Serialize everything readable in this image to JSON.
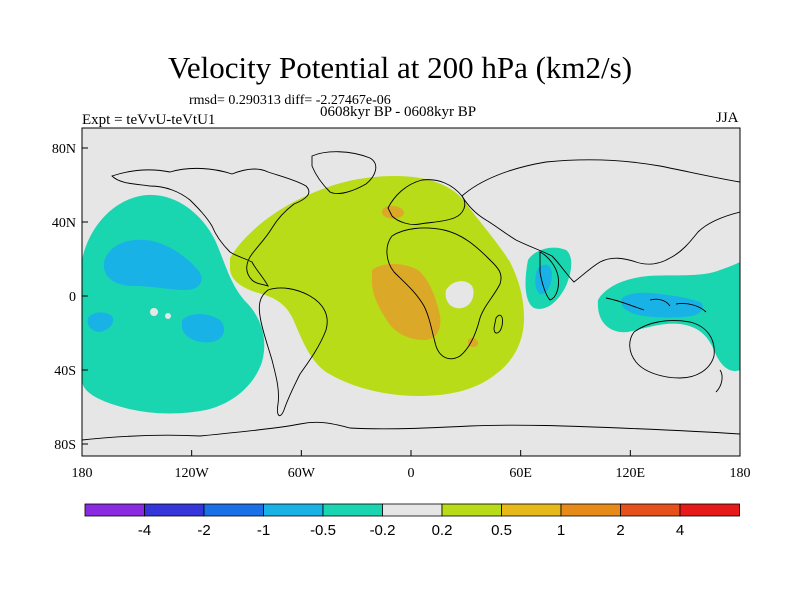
{
  "title": "Velocity Potential at 200 hPa (km2/s)",
  "stats": "rmsd= 0.290313 diff= -2.27467e-06",
  "period": "0608kyr BP - 0608kyr BP",
  "experiment": "Expt = teVvU-teVtU1",
  "season": "JJA",
  "axes": {
    "x_ticks": [
      {
        "lon": -180,
        "label": "180"
      },
      {
        "lon": -120,
        "label": "120W"
      },
      {
        "lon": -60,
        "label": "60W"
      },
      {
        "lon": 0,
        "label": "0"
      },
      {
        "lon": 60,
        "label": "60E"
      },
      {
        "lon": 120,
        "label": "120E"
      },
      {
        "lon": 180,
        "label": "180"
      }
    ],
    "y_ticks": [
      {
        "lat": 80,
        "label": "80N"
      },
      {
        "lat": 40,
        "label": "40N"
      },
      {
        "lat": 0,
        "label": "0"
      },
      {
        "lat": -40,
        "label": "40S"
      },
      {
        "lat": -80,
        "label": "80S"
      }
    ]
  },
  "colorbar": {
    "colors": [
      "#8a2be2",
      "#3535d9",
      "#1a70e6",
      "#19b2e6",
      "#1ad6b0",
      "#e6e6e6",
      "#b8dc18",
      "#e6b81a",
      "#e68a1a",
      "#e6501a",
      "#e61a1a"
    ],
    "labels": [
      "-4",
      "-2",
      "-1",
      "-0.5",
      "-0.2",
      "0.2",
      "0.5",
      "1",
      "2",
      "4"
    ]
  },
  "colors": {
    "background": "#e6e6e6",
    "positive_low": "#b8dc18",
    "positive_mid": "#dca828",
    "positive_high": "#d98a2a",
    "negative_low": "#1ad6b0",
    "negative_mid": "#19b2e6",
    "negative_high": "#1a70e6",
    "coast": "#000000"
  }
}
